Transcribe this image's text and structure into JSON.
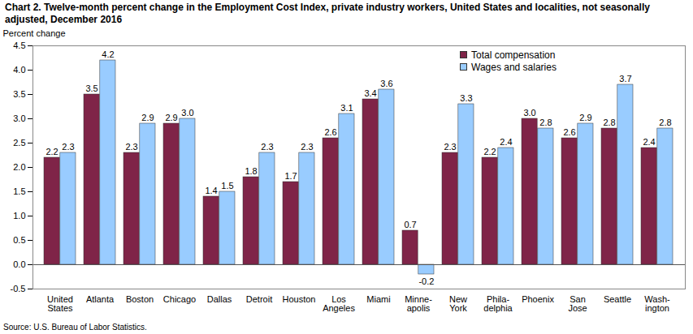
{
  "chart_data": {
    "type": "bar",
    "title": "Chart 2. Twelve-month percent change in the Employment Cost Index, private industry workers, United States and localities, not seasonally adjusted, December 2016",
    "y_label": "Percent change",
    "source": "Source: U.S. Bureau of Labor Statistics.",
    "categories": [
      "United\nStates",
      "Atlanta",
      "Boston",
      "Chicago",
      "Dallas",
      "Detroit",
      "Houston",
      "Los\nAngeles",
      "Miami",
      "Minne-\napolis",
      "New\nYork",
      "Phila-\ndelphia",
      "Phoenix",
      "San\nJose",
      "Seattle",
      "Wash-\nington"
    ],
    "series": [
      {
        "name": "Total compensation",
        "color": "#7f2448",
        "values": [
          2.2,
          3.5,
          2.3,
          2.9,
          1.4,
          1.8,
          1.7,
          2.6,
          3.4,
          0.7,
          2.3,
          2.2,
          3.0,
          2.6,
          2.8,
          2.4
        ],
        "value_labels": [
          "2.2",
          "3.5",
          "2.3",
          "2.9",
          "1.4",
          "1.8",
          "1.7",
          "2.6",
          "3.4",
          "0.7",
          "2.3",
          "2.2",
          "3.0",
          "2.6",
          "2.8",
          "2.4"
        ]
      },
      {
        "name": "Wages and salaries",
        "color": "#99ccff",
        "values": [
          2.3,
          4.2,
          2.9,
          3.0,
          1.5,
          2.3,
          2.3,
          3.1,
          3.6,
          -0.2,
          3.3,
          2.4,
          2.8,
          2.9,
          3.7,
          2.8
        ],
        "value_labels": [
          "2.3",
          "4.2",
          "2.9",
          "3.0",
          "1.5",
          "2.3",
          "2.3",
          "3.1",
          "3.6",
          "-0.2",
          "3.3",
          "2.4",
          "2.8",
          "2.9",
          "3.7",
          "2.8"
        ]
      }
    ],
    "ylim": [
      -0.5,
      4.5
    ],
    "yticks": [
      -0.5,
      {
        "value": 0,
        "label": "0.0"
      },
      0.5,
      {
        "value": 1,
        "label": "1.0"
      },
      1.5,
      {
        "value": 2,
        "label": "2.0"
      },
      2.5,
      {
        "value": 3,
        "label": "3.0"
      },
      3.5,
      {
        "value": 4,
        "label": "4.0"
      },
      4.5
    ],
    "grid": false,
    "legend": "top-right",
    "data_labels": true
  }
}
